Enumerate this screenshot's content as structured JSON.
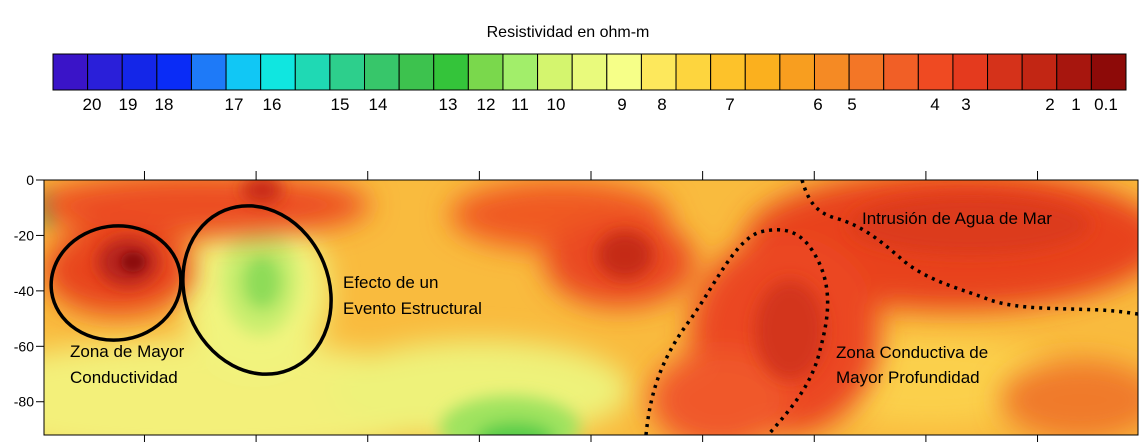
{
  "chart_data": {
    "type": "heatmap",
    "colorbar": {
      "title": "Resistividad en ohm-m",
      "tick_labels": [
        "20",
        "19",
        "18",
        "17",
        "16",
        "15",
        "14",
        "13",
        "12",
        "11",
        "10",
        "9",
        "8",
        "7",
        "6",
        "5",
        "4",
        "3",
        "2",
        "1",
        "0.1"
      ],
      "colors": [
        "#3a14c8",
        "#2a1fd9",
        "#1426e8",
        "#0a2cf6",
        "#1e7af8",
        "#11c7f5",
        "#10e6e0",
        "#1fd9b4",
        "#2dcf8c",
        "#37c66a",
        "#3dc24e",
        "#34c43a",
        "#7ad84c",
        "#a2ee6a",
        "#d4f56e",
        "#e9fa7c",
        "#f6ff88",
        "#fde85c",
        "#fdd53e",
        "#fdc22a",
        "#fbb01e",
        "#f89e1f",
        "#f58a24",
        "#f37626",
        "#f15f26",
        "#ef4a22",
        "#e43a1e",
        "#d5321a",
        "#c22614",
        "#a7160e",
        "#8d0a08"
      ]
    },
    "xaxis": {
      "ticks": [
        100,
        150,
        200,
        250,
        300,
        350,
        400,
        450,
        500
      ],
      "range": [
        55,
        545
      ]
    },
    "yaxis": {
      "ticks": [
        0,
        -20,
        -40,
        -60,
        -80
      ],
      "range": [
        -92,
        0
      ]
    },
    "annotations": [
      {
        "id": "mayor-conductividad",
        "lines": [
          "Zona de Mayor",
          "Conductividad"
        ]
      },
      {
        "id": "evento-estructural",
        "lines": [
          "Efecto de un",
          "Evento Estructural"
        ]
      },
      {
        "id": "intrusion",
        "lines": [
          "Intrusión de Agua de Mar"
        ]
      },
      {
        "id": "zona-conductiva",
        "lines": [
          "Zona Conductiva de",
          "Mayor Profundidad"
        ]
      }
    ],
    "field_colors": {
      "base": "#f7b53a",
      "low": "#b9ec6a",
      "high": "#e8401e",
      "peak": "#a31a12"
    }
  }
}
